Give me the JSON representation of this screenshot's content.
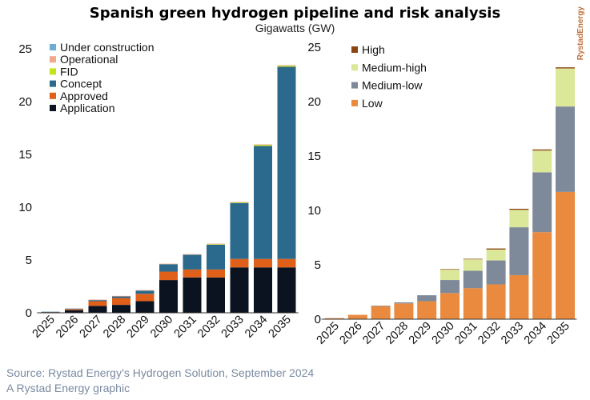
{
  "header": {
    "title": "Spanish green hydrogen pipeline and risk analysis",
    "subtitle": "Gigawatts (GW)",
    "brand": "RystadEnergy"
  },
  "footer": {
    "source": "Source: Rystad Energy’s Hydrogen Solution, September 2024",
    "credit": "A Rystad Energy graphic"
  },
  "colors": {
    "under_construction": "#6aaed6",
    "operational": "#f2a98b",
    "fid": "#c6e21a",
    "concept": "#2b6a8c",
    "approved": "#e0601a",
    "application": "#0b1220",
    "high": "#8b4513",
    "medium_high": "#dbe89a",
    "medium_low": "#7e8a99",
    "low": "#ea8a3e"
  },
  "chart_data": [
    {
      "type": "bar",
      "stacked": true,
      "title": "",
      "xlabel": "",
      "ylabel": "",
      "ylim": [
        0,
        25
      ],
      "yticks": [
        0,
        5,
        10,
        15,
        20,
        25
      ],
      "grid": false,
      "legend": "top-left",
      "categories": [
        "2025",
        "2026",
        "2027",
        "2028",
        "2029",
        "2030",
        "2031",
        "2032",
        "2033",
        "2034",
        "2035"
      ],
      "series": [
        {
          "name": "Application",
          "values": [
            0.05,
            0.25,
            0.65,
            0.75,
            1.1,
            3.1,
            3.35,
            3.35,
            4.3,
            4.3,
            4.3
          ]
        },
        {
          "name": "Approved",
          "values": [
            0.02,
            0.1,
            0.45,
            0.65,
            0.7,
            0.8,
            0.75,
            0.75,
            0.8,
            0.8,
            0.8
          ]
        },
        {
          "name": "Concept",
          "values": [
            0.03,
            0.05,
            0.1,
            0.15,
            0.3,
            0.7,
            1.4,
            2.35,
            5.3,
            10.7,
            18.2
          ]
        },
        {
          "name": "FID",
          "values": [
            0,
            0,
            0,
            0,
            0,
            0,
            0,
            0.05,
            0.05,
            0.1,
            0.1
          ]
        },
        {
          "name": "Operational",
          "values": [
            0,
            0,
            0.05,
            0.05,
            0.05,
            0.05,
            0.05,
            0.05,
            0.05,
            0.05,
            0.05
          ]
        },
        {
          "name": "Under construction",
          "values": [
            0,
            0,
            0,
            0,
            0,
            0,
            0,
            0,
            0,
            0,
            0
          ]
        }
      ]
    },
    {
      "type": "bar",
      "stacked": true,
      "title": "",
      "xlabel": "",
      "ylabel": "",
      "ylim": [
        0,
        25
      ],
      "yticks": [
        0,
        5,
        10,
        15,
        20,
        25
      ],
      "grid": false,
      "legend": "top-left",
      "categories": [
        "2025",
        "2026",
        "2027",
        "2028",
        "2029",
        "2030",
        "2031",
        "2032",
        "2033",
        "2034",
        "2035"
      ],
      "series": [
        {
          "name": "Low",
          "values": [
            0.1,
            0.4,
            1.2,
            1.45,
            1.65,
            2.4,
            2.85,
            3.2,
            4.05,
            8.0,
            11.7
          ]
        },
        {
          "name": "Medium-low",
          "values": [
            0,
            0,
            0.05,
            0.1,
            0.55,
            1.2,
            1.6,
            2.2,
            4.4,
            5.5,
            7.85
          ]
        },
        {
          "name": "Medium-high",
          "values": [
            0,
            0,
            0,
            0,
            0,
            0.95,
            1.05,
            1.0,
            1.6,
            2.0,
            3.5
          ]
        },
        {
          "name": "High",
          "values": [
            0,
            0,
            0,
            0,
            0,
            0.05,
            0.05,
            0.1,
            0.1,
            0.1,
            0.1
          ]
        }
      ]
    }
  ]
}
